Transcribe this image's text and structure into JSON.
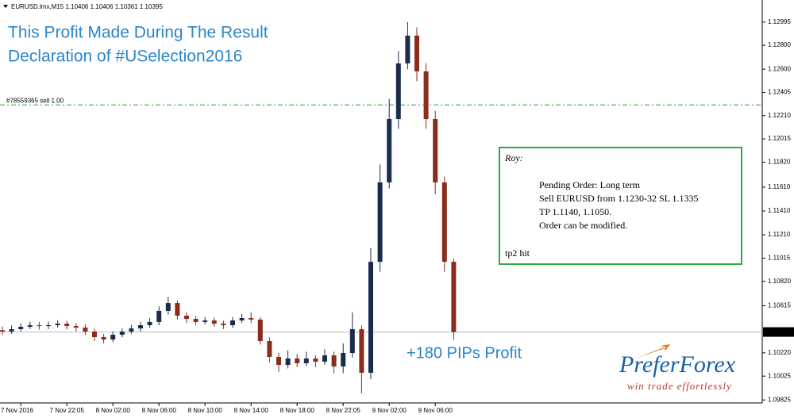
{
  "header": "EURUSD.lmx,M15  1.10406 1.10406 1.10361 1.10395",
  "chart_data": {
    "type": "candlestick",
    "title_lines": [
      "This Profit Made During The Result",
      "Declaration of #USelection2016"
    ],
    "categories": [
      null,
      null,
      "7 Nov 2016",
      null,
      null,
      null,
      null,
      "7 Nov 22:05",
      null,
      null,
      null,
      null,
      "8 Nov 02:00",
      null,
      null,
      null,
      null,
      "8 Nov 06:00",
      null,
      null,
      null,
      null,
      "8 Nov 10:00",
      null,
      null,
      null,
      null,
      "8 Nov 14:00",
      null,
      null,
      null,
      null,
      "8 Nov 18:00",
      null,
      null,
      null,
      null,
      "8 Nov 22:05",
      null,
      null,
      null,
      null,
      "9 Nov 02:00",
      null,
      null,
      null,
      null,
      "9 Nov 06:00",
      null,
      null
    ],
    "open": [
      1.1041,
      1.10399,
      1.10419,
      1.10439,
      1.10452,
      1.10445,
      1.10452,
      1.10465,
      1.10445,
      1.10432,
      1.10399,
      1.10352,
      1.10332,
      1.10372,
      1.10399,
      1.10425,
      1.10452,
      1.10479,
      1.10572,
      1.10638,
      1.10532,
      1.10505,
      1.10479,
      1.10492,
      1.10465,
      1.10452,
      1.10492,
      1.10512,
      1.10499,
      1.10319,
      1.10186,
      1.10119,
      1.10173,
      1.10133,
      1.10173,
      1.10146,
      1.10199,
      1.10106,
      1.10219,
      1.10419,
      1.10053,
      1.10984,
      1.1165,
      1.12182,
      1.12648,
      1.12881,
      1.12581,
      1.12182,
      1.1165,
      1.10984
    ],
    "high": [
      1.1044,
      1.10449,
      1.10469,
      1.10482,
      1.1048,
      1.10482,
      1.10495,
      1.1049,
      1.1047,
      1.1046,
      1.10425,
      1.1038,
      1.104,
      1.10425,
      1.10455,
      1.1048,
      1.1051,
      1.1061,
      1.1069,
      1.1066,
      1.1056,
      1.1053,
      1.1052,
      1.10515,
      1.1049,
      1.1052,
      1.10545,
      1.1056,
      1.1052,
      1.1035,
      1.1022,
      1.1024,
      1.1021,
      1.1023,
      1.102,
      1.1025,
      1.1023,
      1.103,
      1.1056,
      1.1045,
      1.111,
      1.118,
      1.1235,
      1.1275,
      1.12995,
      1.1295,
      1.1265,
      1.1225,
      1.117,
      1.1101
    ],
    "low": [
      1.1037,
      1.1038,
      1.104,
      1.1042,
      1.10415,
      1.1042,
      1.1043,
      1.10415,
      1.104,
      1.1037,
      1.1032,
      1.103,
      1.1031,
      1.1035,
      1.1038,
      1.104,
      1.1043,
      1.1045,
      1.1054,
      1.105,
      1.1047,
      1.1045,
      1.1046,
      1.1044,
      1.1042,
      1.1043,
      1.1047,
      1.1047,
      1.1029,
      1.1014,
      1.1006,
      1.1009,
      1.101,
      1.1011,
      1.101,
      1.1012,
      1.1005,
      1.1005,
      1.1018,
      1.0988,
      1.1,
      1.109,
      1.116,
      1.121,
      1.126,
      1.125,
      1.121,
      1.1155,
      1.109,
      1.1033
    ],
    "close": [
      1.10399,
      1.10419,
      1.10439,
      1.10452,
      1.10445,
      1.10452,
      1.10465,
      1.10445,
      1.10432,
      1.10399,
      1.10352,
      1.10332,
      1.10372,
      1.10399,
      1.10425,
      1.10452,
      1.10479,
      1.10572,
      1.10638,
      1.10532,
      1.10505,
      1.10479,
      1.10492,
      1.10465,
      1.10452,
      1.10492,
      1.10512,
      1.10499,
      1.10319,
      1.10186,
      1.10119,
      1.10173,
      1.10133,
      1.10173,
      1.10146,
      1.10199,
      1.10106,
      1.10219,
      1.10419,
      1.10053,
      1.10984,
      1.1165,
      1.12182,
      1.12648,
      1.12881,
      1.12581,
      1.12182,
      1.1165,
      1.10984,
      1.10395
    ],
    "up_color": "#1c2c4c",
    "down_color": "#8a2d1c",
    "ylim": [
      1.098,
      1.1318
    ],
    "yticks": [
      {
        "value": 1.12995,
        "label": "1.12995"
      },
      {
        "value": 1.128,
        "label": "1.12800"
      },
      {
        "value": 1.126,
        "label": "1.12600"
      },
      {
        "value": 1.12405,
        "label": "1.12405"
      },
      {
        "value": 1.1221,
        "label": "1.12210"
      },
      {
        "value": 1.12015,
        "label": "1.12015"
      },
      {
        "value": 1.1182,
        "label": "1.11820"
      },
      {
        "value": 1.1161,
        "label": "1.11610"
      },
      {
        "value": 1.1141,
        "label": "1.11410"
      },
      {
        "value": 1.1121,
        "label": "1.11210"
      },
      {
        "value": 1.11015,
        "label": "1.11015"
      },
      {
        "value": 1.1082,
        "label": "1.10820"
      },
      {
        "value": 1.10615,
        "label": "1.10615"
      },
      {
        "value": 1.1022,
        "label": "1.10220"
      },
      {
        "value": 1.10025,
        "label": "1.10025"
      },
      {
        "value": 1.09825,
        "label": "1.09825"
      }
    ],
    "order_line": {
      "value": 1.123,
      "label": "#78559365 sell 1.00",
      "color": "#2e9b2e"
    },
    "price_line": {
      "value": 1.10395,
      "label": "1.10395"
    },
    "annotation": "+180 PIPs Profit"
  },
  "note": {
    "heading": "Roy:",
    "lines": [
      "Pending Order: Long term",
      "Sell EURUSD from 1.1230-32 SL 1.1335",
      "TP 1.1140, 1.1050.",
      "Order can be modified."
    ],
    "footer": "tp2 hit"
  },
  "logo": {
    "name": "PreferForex",
    "tagline": "win trade effortlessly"
  }
}
